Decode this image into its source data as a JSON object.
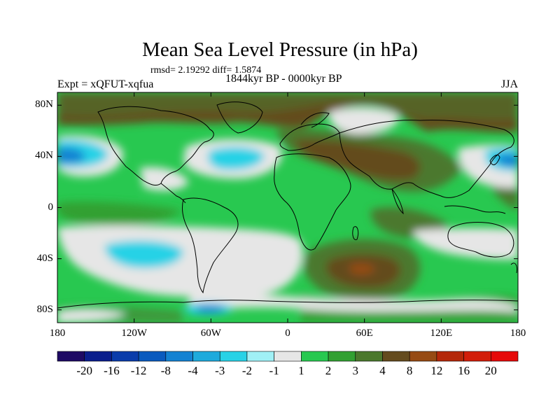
{
  "title": "Mean Sea Level Pressure (in hPa)",
  "stats_line": "rmsd= 2.19292 diff= 1.5874",
  "period": "1844kyr BP - 0000kyr BP",
  "experiment": "Expt = xQFUT-xqfua",
  "season": "JJA",
  "axes": {
    "y_ticks": [
      {
        "label": "80N",
        "lat": 80
      },
      {
        "label": "40N",
        "lat": 40
      },
      {
        "label": "0",
        "lat": 0
      },
      {
        "label": "40S",
        "lat": -40
      },
      {
        "label": "80S",
        "lat": -80
      }
    ],
    "x_ticks": [
      {
        "label": "180",
        "lon": -180
      },
      {
        "label": "120W",
        "lon": -120
      },
      {
        "label": "60W",
        "lon": -60
      },
      {
        "label": "0",
        "lon": 0
      },
      {
        "label": "60E",
        "lon": 60
      },
      {
        "label": "120E",
        "lon": 120
      },
      {
        "label": "180",
        "lon": 180
      }
    ]
  },
  "colorbar": {
    "levels": [
      "-20",
      "-16",
      "-12",
      "-8",
      "-4",
      "-3",
      "-2",
      "-1",
      "1",
      "2",
      "3",
      "4",
      "8",
      "12",
      "16",
      "20"
    ],
    "colors": [
      "#1e0a64",
      "#0a1e8c",
      "#0a3caa",
      "#0a5abe",
      "#1482d2",
      "#1eaadc",
      "#28d2e6",
      "#a0f0f5",
      "#e6e6e6",
      "#28c850",
      "#32a032",
      "#4b782d",
      "#644b1e",
      "#964b14",
      "#b4280a",
      "#d21e0a",
      "#e60a0a"
    ]
  },
  "palette": {
    "neg1": "#1eaadc",
    "neg2": "#28d2e6",
    "neg3": "#1482d2",
    "near_zero": "#e6e6e6",
    "pos2": "#28c850",
    "pos3": "#32a032",
    "pos4": "#4b782d",
    "pos8": "#644b1e",
    "coast": "#000000"
  }
}
